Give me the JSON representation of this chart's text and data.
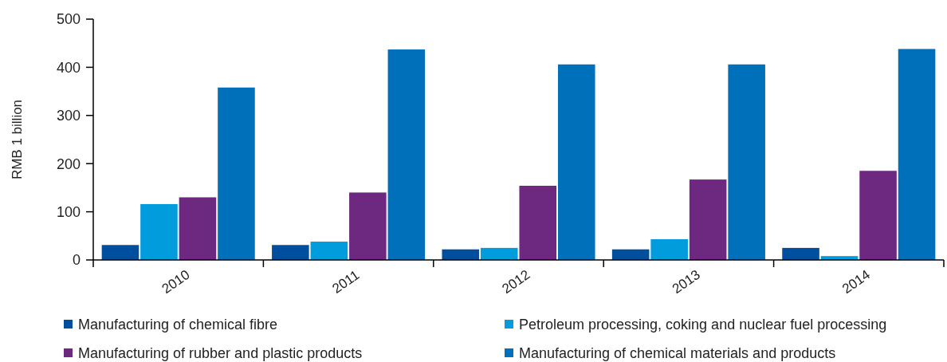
{
  "chart_data": {
    "type": "bar",
    "ylabel": "RMB 1 billion",
    "categories": [
      "2010",
      "2011",
      "2012",
      "2013",
      "2014"
    ],
    "series": [
      {
        "name": "Manufacturing of chemical fibre",
        "color": "#004f9e",
        "values": [
          31,
          31,
          22,
          22,
          25
        ]
      },
      {
        "name": "Petroleum processing, coking and nuclear fuel processing",
        "color": "#009cdc",
        "values": [
          116,
          38,
          25,
          43,
          8
        ]
      },
      {
        "name": "Manufacturing of rubber and plastic products",
        "color": "#6d2880",
        "values": [
          130,
          140,
          154,
          167,
          185
        ]
      },
      {
        "name": "Manufacturing of chemical materials and products",
        "color": "#0070bb",
        "values": [
          358,
          437,
          406,
          406,
          438
        ]
      }
    ],
    "ylim": [
      0,
      500
    ],
    "yticks": [
      0,
      100,
      200,
      300,
      400,
      500
    ],
    "grid": false,
    "legend": "bottom"
  }
}
